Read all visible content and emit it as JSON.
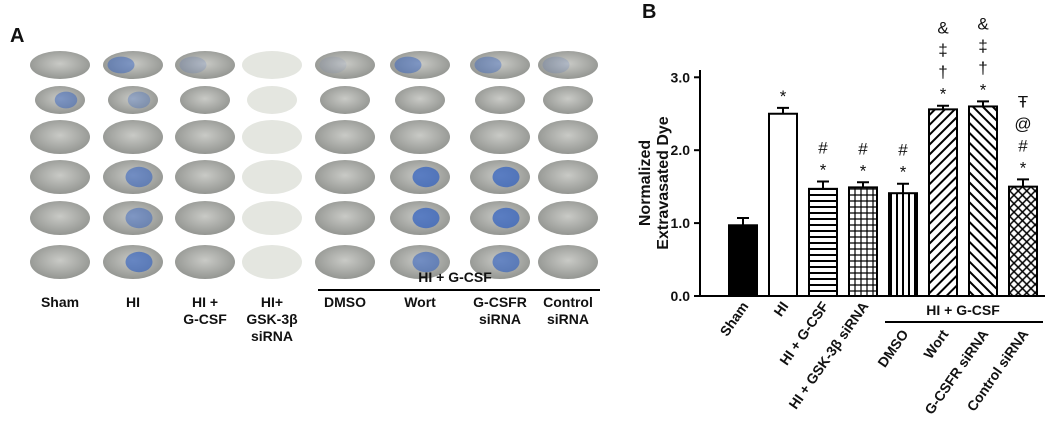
{
  "panel_a": {
    "label": "A",
    "columns": [
      "Sham",
      "HI",
      "HI + G-CSF",
      "HI+ GSK-3β siRNA",
      "DMSO",
      "Wort",
      "G-CSFR siRNA",
      "Control siRNA"
    ],
    "group": "HI + G-CSF"
  },
  "chart_data": {
    "type": "bar",
    "panel": "B",
    "ylabel": [
      "Normalized",
      "Extravasated Dye"
    ],
    "categories": [
      "Sham",
      "HI",
      "HI + G-CSF",
      "HI + GSK-3β siRNA",
      "DMSO",
      "Wort",
      "G-CSFR siRNA",
      "Control siRNA"
    ],
    "values": [
      0.97,
      2.5,
      1.47,
      1.49,
      1.41,
      2.56,
      2.6,
      1.5
    ],
    "errors": [
      0.1,
      0.08,
      0.1,
      0.07,
      0.13,
      0.05,
      0.07,
      0.1
    ],
    "patterns": [
      "solid",
      "open",
      "horizontal",
      "grid",
      "vertical",
      "diagonal",
      "back-diagonal",
      "crosshatch"
    ],
    "markers": [
      null,
      [
        "*"
      ],
      [
        "#",
        "*"
      ],
      [
        "#",
        "*"
      ],
      [
        "#",
        "*"
      ],
      [
        "&",
        "‡",
        "†",
        "*"
      ],
      [
        "&",
        "‡",
        "†",
        "*"
      ],
      [
        "Ŧ",
        "@",
        "#",
        "*"
      ]
    ],
    "group": "HI + G-CSF",
    "ylim": [
      0,
      3.1
    ],
    "yticks": [
      {
        "value": 0,
        "label": "0.0"
      },
      {
        "value": 1,
        "label": "1.0"
      },
      {
        "value": 2,
        "label": "2.0"
      },
      {
        "value": 3,
        "label": "3.0"
      }
    ]
  }
}
